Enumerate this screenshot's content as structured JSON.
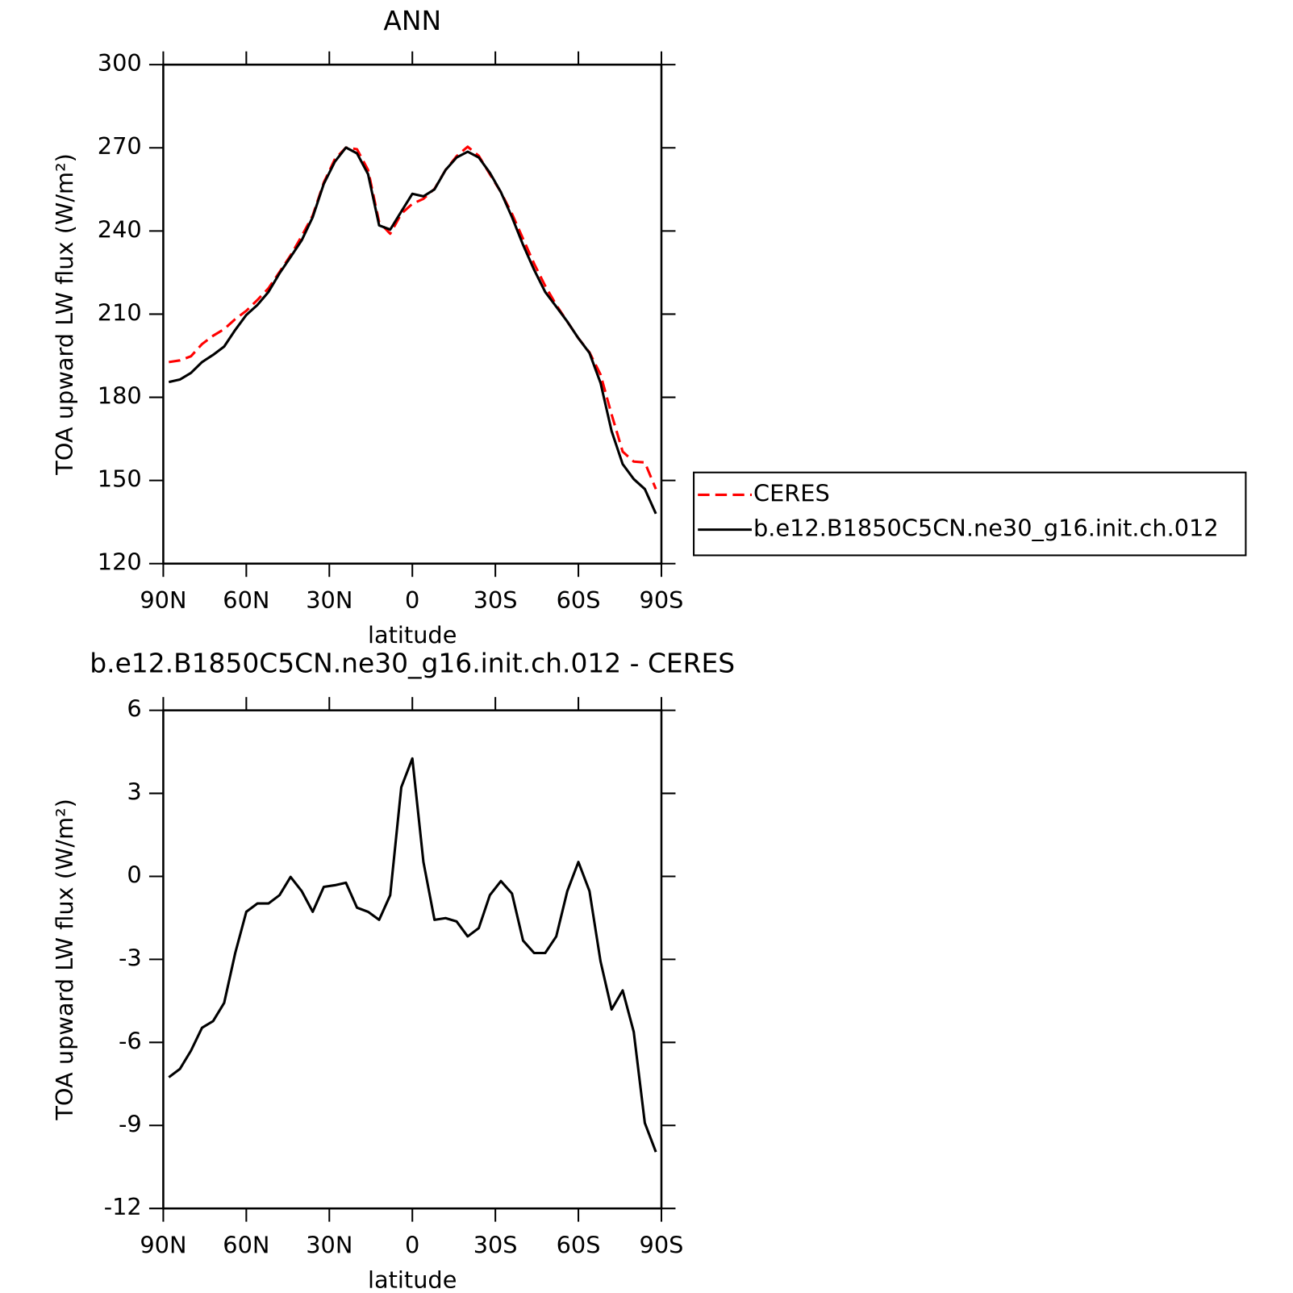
{
  "chart_data": [
    {
      "type": "line",
      "title": "ANN",
      "x_label": "latitude",
      "y_label": "TOA upward LW flux (W/m²)",
      "x": [
        88,
        84,
        80,
        76,
        72,
        68,
        64,
        60,
        56,
        52,
        48,
        44,
        40,
        36,
        32,
        28,
        24,
        20,
        16,
        12,
        8,
        4,
        0,
        -4,
        -8,
        -12,
        -16,
        -20,
        -24,
        -28,
        -32,
        -36,
        -40,
        -44,
        -48,
        -52,
        -56,
        -60,
        -64,
        -68,
        -72,
        -76,
        -80,
        -84,
        -88
      ],
      "series": [
        {
          "name": "CERES",
          "color": "#ff0000",
          "style": "dashed",
          "values": [
            192.7,
            193.3,
            194.8,
            199.2,
            202.2,
            204.6,
            208.2,
            211.2,
            215.1,
            219.3,
            225.2,
            231.2,
            238.1,
            245.6,
            257.5,
            265.9,
            270.1,
            269.5,
            262,
            243.2,
            239,
            246.2,
            249.8,
            251.6,
            255.2,
            262,
            267,
            270.4,
            267.1,
            260.5,
            254,
            246.2,
            237.2,
            228.2,
            220.2,
            213.3,
            207.3,
            201.3,
            196.2,
            188.2,
            173.8,
            160.4,
            156.8,
            156.5,
            146.9
          ]
        },
        {
          "name": "b.e12.B1850C5CN.ne30_g16.init.ch.012",
          "color": "#000000",
          "style": "solid",
          "values": [
            185.5,
            186.4,
            188.8,
            192.7,
            195.3,
            198.3,
            204.3,
            209.7,
            213.3,
            218,
            224.7,
            230.6,
            236.6,
            245,
            257,
            265,
            270.1,
            268,
            260.5,
            242,
            240.5,
            247,
            253.4,
            252.5,
            255,
            262,
            266.5,
            268.6,
            266.5,
            261,
            254,
            245,
            235,
            226,
            218,
            212.7,
            207.3,
            201.3,
            196,
            185.2,
            167.8,
            155.9,
            150.5,
            146.9,
            138
          ]
        }
      ],
      "xlim": [
        90,
        -90
      ],
      "xticks": [
        {
          "value": 90,
          "label": "90N"
        },
        {
          "value": 60,
          "label": "60N"
        },
        {
          "value": 30,
          "label": "30N"
        },
        0,
        {
          "value": -30,
          "label": "30S"
        },
        {
          "value": -60,
          "label": "60S"
        },
        {
          "value": -90,
          "label": "90S"
        }
      ],
      "ylim": [
        120,
        300
      ],
      "yticks": [
        120,
        150,
        180,
        210,
        240,
        270,
        300
      ],
      "legend": "right"
    },
    {
      "type": "line",
      "title": "b.e12.B1850C5CN.ne30_g16.init.ch.012 - CERES",
      "x_label": "latitude",
      "y_label": "TOA upward LW flux (W/m²)",
      "x": [
        88,
        84,
        80,
        76,
        72,
        68,
        64,
        60,
        56,
        52,
        48,
        44,
        40,
        36,
        32,
        28,
        24,
        20,
        16,
        12,
        8,
        4,
        0,
        -4,
        -8,
        -12,
        -16,
        -20,
        -24,
        -28,
        -32,
        -36,
        -40,
        -44,
        -48,
        -52,
        -56,
        -60,
        -64,
        -68,
        -72,
        -76,
        -80,
        -84,
        -88
      ],
      "values": [
        -7.26,
        -6.96,
        -6.3,
        -5.47,
        -5.23,
        -4.57,
        -2.77,
        -1.28,
        -0.98,
        -0.98,
        -0.68,
        -0.02,
        -0.53,
        -1.28,
        -0.38,
        -0.32,
        -0.23,
        -1.13,
        -1.28,
        -1.57,
        -0.68,
        3.22,
        4.26,
        0.52,
        -1.57,
        -1.51,
        -1.63,
        -2.17,
        -1.87,
        -0.68,
        -0.17,
        -0.62,
        -2.32,
        -2.77,
        -2.77,
        -2.17,
        -0.53,
        0.52,
        -0.53,
        -3.07,
        -4.81,
        -4.12,
        -5.62,
        -8.91,
        -9.96
      ],
      "color": "#000000",
      "xlim": [
        90,
        -90
      ],
      "xticks": [
        {
          "value": 90,
          "label": "90N"
        },
        {
          "value": 60,
          "label": "60N"
        },
        {
          "value": 30,
          "label": "30N"
        },
        0,
        {
          "value": -30,
          "label": "30S"
        },
        {
          "value": -60,
          "label": "60S"
        },
        {
          "value": -90,
          "label": "90S"
        }
      ],
      "ylim": [
        -12,
        6
      ],
      "yticks": [
        -12,
        -9,
        -6,
        -3,
        0,
        3,
        6
      ]
    }
  ]
}
